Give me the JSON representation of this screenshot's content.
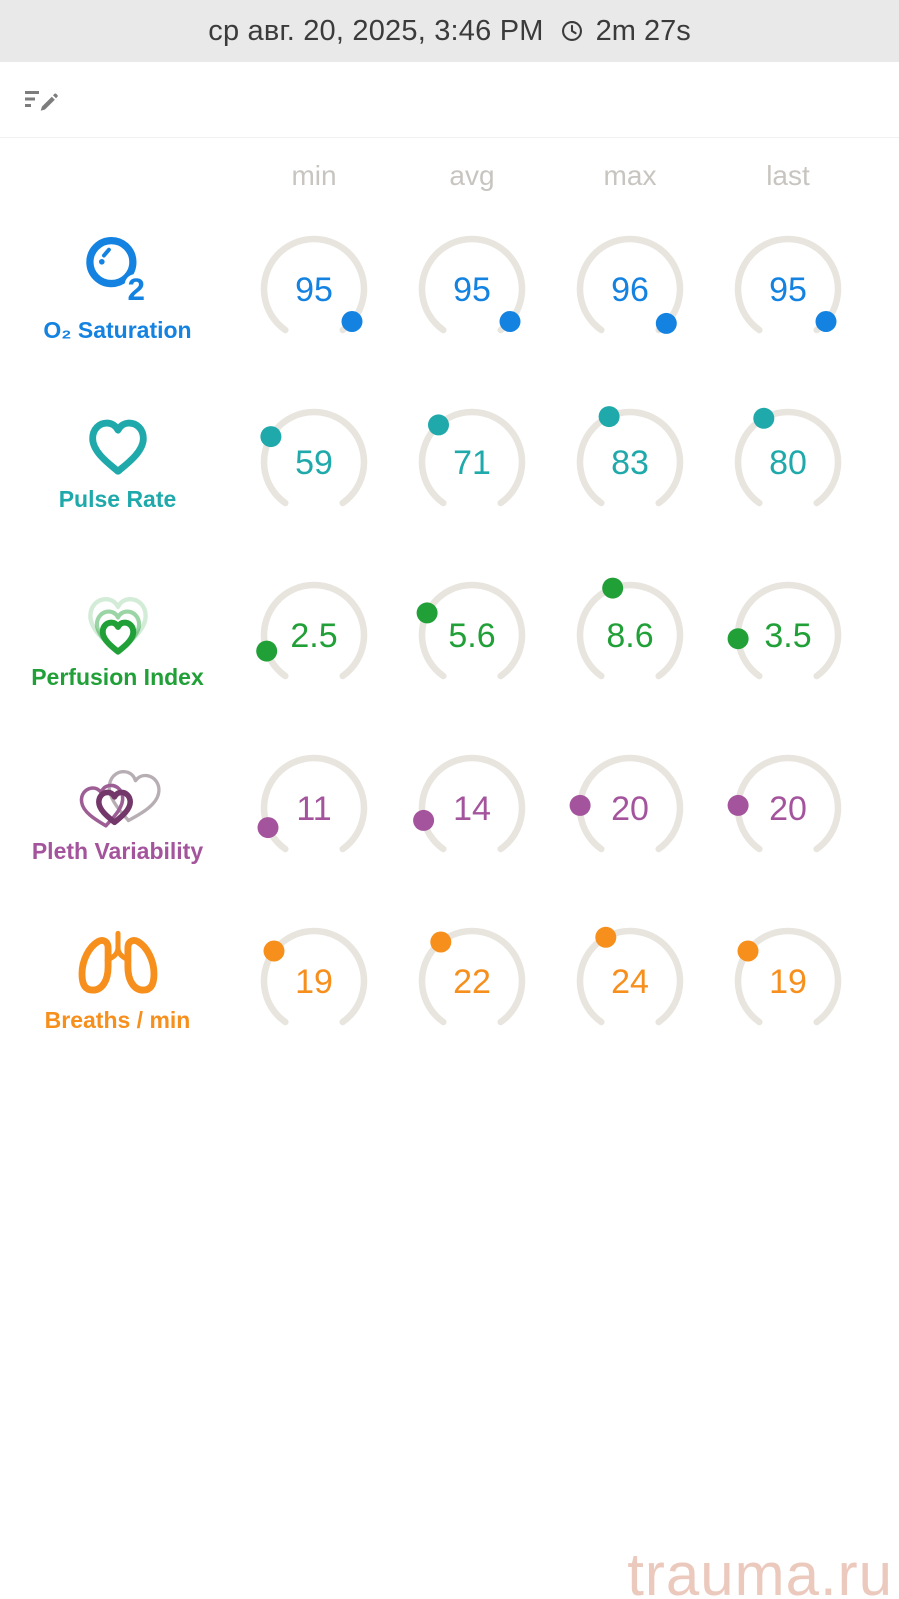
{
  "header": {
    "date": "ср авг. 20, 2025, 3:46 PM",
    "duration": "2m 27s",
    "clock_icon": "clock-outline-icon"
  },
  "toolbar": {
    "edit_icon": "edit-note-icon"
  },
  "columns": [
    "min",
    "avg",
    "max",
    "last"
  ],
  "gauge": {
    "start_angle": 215,
    "sweep": 290,
    "track_color": "#e8e4de"
  },
  "metrics": [
    {
      "label": "O₂ Saturation",
      "icon": "o2-molecule-icon",
      "color": "#1482e0",
      "scale": {
        "min": 0,
        "max": 100
      },
      "values": {
        "min": 95,
        "avg": 95,
        "max": 96,
        "last": 95
      }
    },
    {
      "label": "Pulse Rate",
      "icon": "heart-icon",
      "color": "#1fa9ab",
      "scale": {
        "min": 0,
        "max": 200
      },
      "values": {
        "min": 59,
        "avg": 71,
        "max": 83,
        "last": 80
      }
    },
    {
      "label": "Perfusion Index",
      "icon": "nested-hearts-icon",
      "color": "#21a038",
      "scale": {
        "min": 0,
        "max": 20
      },
      "values": {
        "min": 2.5,
        "avg": 5.6,
        "max": 8.6,
        "last": 3.5
      }
    },
    {
      "label": "Pleth Variability",
      "icon": "overlapping-hearts-icon",
      "color": "#a4549c",
      "scale": {
        "min": 0,
        "max": 100
      },
      "values": {
        "min": 11,
        "avg": 14,
        "max": 20,
        "last": 20
      }
    },
    {
      "label": "Breaths / min",
      "icon": "lungs-icon",
      "color": "#f78f1d",
      "scale": {
        "min": 0,
        "max": 60
      },
      "values": {
        "min": 19,
        "avg": 22,
        "max": 24,
        "last": 19
      }
    }
  ],
  "watermark": "trauma.ru"
}
